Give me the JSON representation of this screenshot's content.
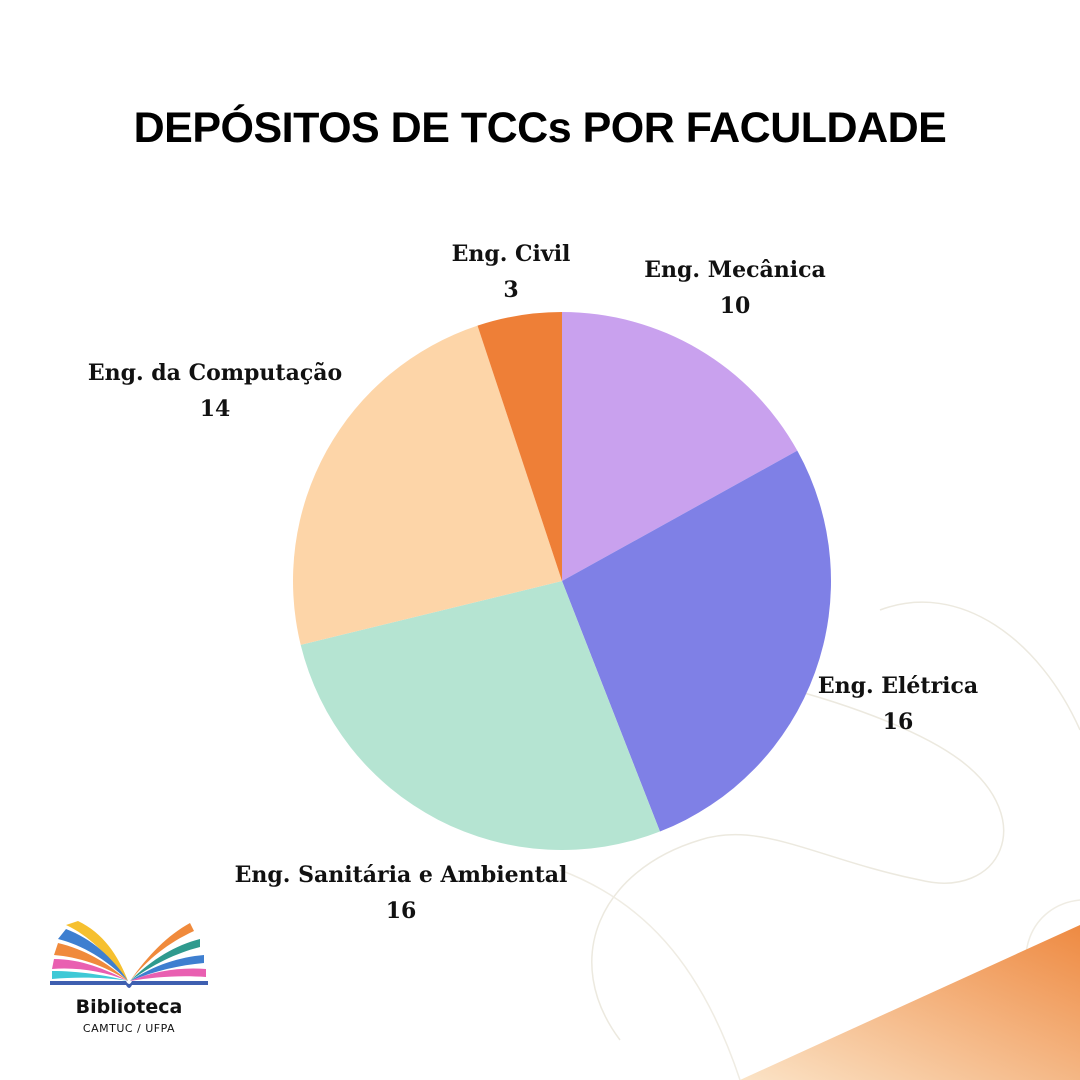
{
  "title": "DEPÓSITOS DE TCCs POR FACULDADE",
  "brand": {
    "name": "Biblioteca",
    "subtitle": "CAMTUC / UFPA"
  },
  "chart_data": {
    "type": "pie",
    "start": "12 o'clock",
    "direction": "clockwise",
    "slices": [
      {
        "label": "Eng. Mecânica",
        "value": 10,
        "color": "#c9a1ee"
      },
      {
        "label": "Eng. Elétrica",
        "value": 16,
        "color": "#7f80e6"
      },
      {
        "label": "Eng. Sanitária e Ambiental",
        "value": 16,
        "color": "#b5e4d2"
      },
      {
        "label": "Eng. da Computação",
        "value": 14,
        "color": "#fdd5a8"
      },
      {
        "label": "Eng. Civil",
        "value": 3,
        "color": "#ee7f37"
      }
    ]
  },
  "colors": {
    "accent": "#ee8a42",
    "accent_light": "#fbe3c6"
  }
}
